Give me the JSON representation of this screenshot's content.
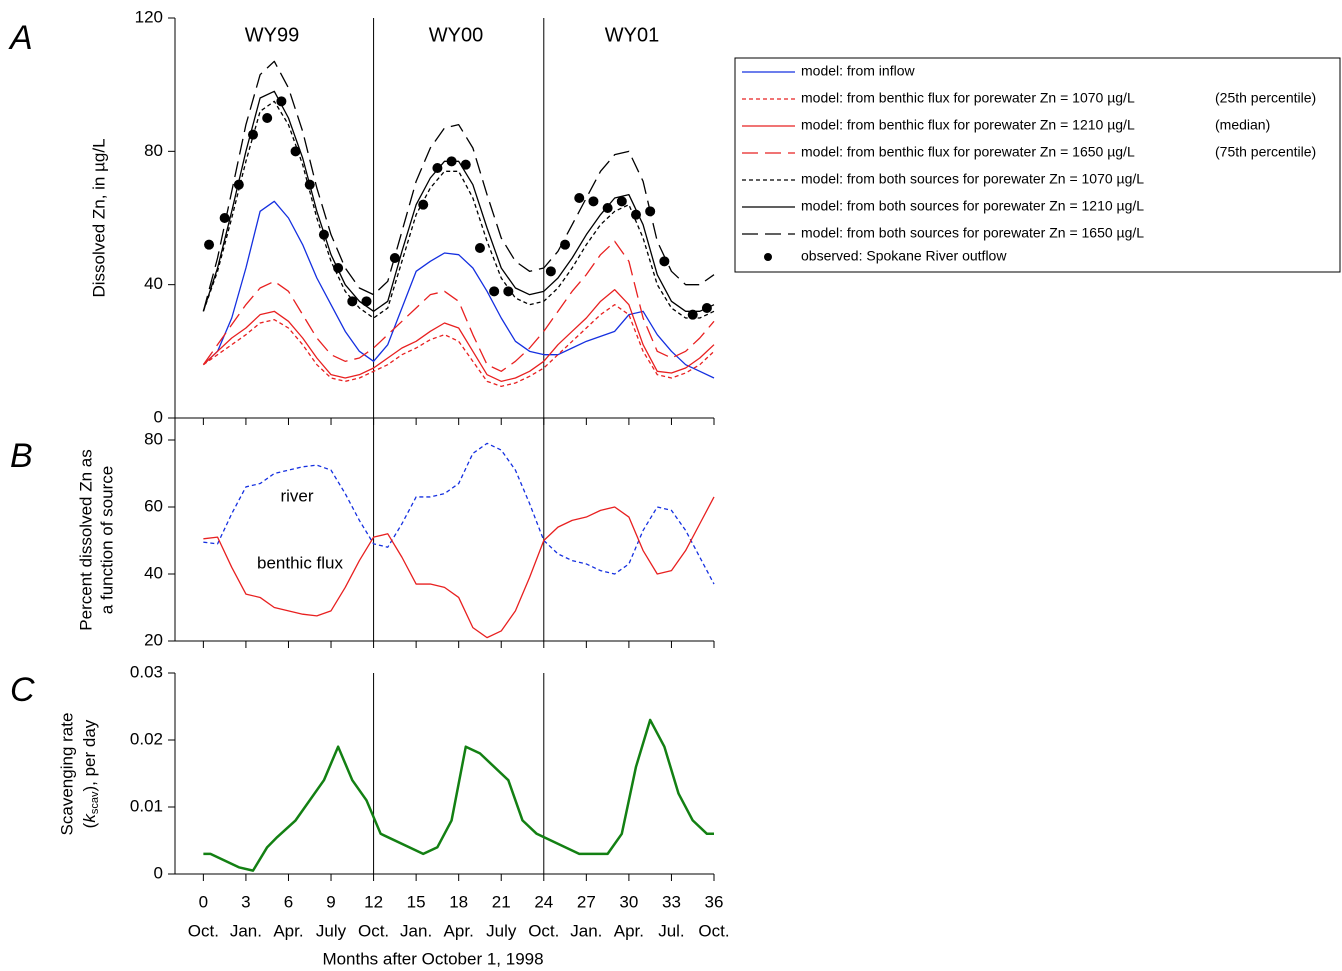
{
  "chart_data": [
    {
      "type": "line",
      "panel_label": "A",
      "ylabel": [
        "Dissolved Zn, in µg/L"
      ],
      "xlim": [
        -2,
        36
      ],
      "ylim": [
        0,
        120
      ],
      "yticks": [
        0,
        40,
        80,
        120
      ],
      "year_lines": [
        12,
        24
      ],
      "year_labels": [
        "WY99",
        "WY00",
        "WY01"
      ],
      "x": [
        0,
        1,
        2,
        3,
        4,
        5,
        6,
        7,
        8,
        9,
        10,
        11,
        12,
        13,
        14,
        15,
        16,
        17,
        18,
        19,
        20,
        21,
        22,
        23,
        24,
        25,
        26,
        27,
        28,
        29,
        30,
        31,
        32,
        33,
        34,
        35,
        36
      ],
      "series": [
        {
          "name": "model: from inflow",
          "color": "#1530e0",
          "line_style": "solid",
          "values": [
            16,
            20,
            30,
            45,
            62,
            65,
            60,
            52,
            42,
            34,
            26,
            20,
            17,
            22,
            33,
            44,
            47,
            49.5,
            49,
            45,
            38,
            30,
            23,
            20,
            19,
            19,
            21,
            23,
            24.5,
            26,
            31,
            32,
            25,
            20,
            16,
            14,
            12
          ]
        },
        {
          "name": "model: from benthic flux for porewater Zn = 1070 µg/L",
          "legend_note": "(25th percentile)",
          "color": "#e82020",
          "line_style": "short",
          "values": [
            16,
            19,
            22,
            25,
            28.5,
            29.5,
            27,
            22,
            16,
            12,
            11,
            12,
            14,
            16,
            19,
            21,
            23.5,
            25,
            23,
            17,
            11,
            9.5,
            10.5,
            12.5,
            15,
            19,
            23,
            27,
            31,
            34,
            31,
            20,
            13,
            12,
            13.5,
            16,
            20
          ]
        },
        {
          "name": "model: from benthic flux for porewater Zn = 1210 µg/L",
          "legend_note": "(median)",
          "color": "#e82020",
          "line_style": "solid",
          "values": [
            16,
            20,
            24,
            27,
            31,
            32,
            29,
            24,
            18,
            13,
            12,
            13,
            15,
            18,
            21,
            23,
            26,
            28.5,
            27,
            20,
            13,
            11,
            12,
            14,
            17,
            22,
            26,
            30,
            35,
            38.5,
            34,
            22,
            14,
            13.5,
            15,
            18,
            22
          ]
        },
        {
          "name": "model: from benthic flux for porewater Zn = 1650 µg/L",
          "legend_note": "(75th percentile)",
          "color": "#e82020",
          "line_style": "long",
          "values": [
            16,
            22,
            28,
            34,
            39,
            41,
            38,
            31,
            24,
            19,
            17,
            18,
            21,
            25,
            29,
            33,
            37,
            38,
            35,
            25,
            16,
            14,
            17,
            21,
            26,
            32,
            38,
            43,
            49,
            53,
            47,
            30,
            20,
            18,
            20,
            24,
            29
          ]
        },
        {
          "name": "model: from both sources for porewater Zn = 1070 µg/L",
          "color": "#000000",
          "line_style": "short",
          "values": [
            32,
            44,
            60,
            77,
            92,
            95,
            88,
            76,
            60,
            47,
            38,
            33,
            30,
            33,
            47,
            61,
            69,
            74,
            74,
            66,
            53,
            42,
            36,
            34,
            35,
            39,
            45,
            52,
            58,
            62,
            64,
            54,
            40,
            33,
            30,
            30,
            32
          ]
        },
        {
          "name": "model: from both sources for porewater Zn = 1210 µg/L",
          "color": "#000000",
          "line_style": "solid",
          "values": [
            32,
            45,
            62,
            80,
            96,
            98,
            90,
            78,
            62,
            49,
            40,
            35,
            32,
            35,
            50,
            64,
            72,
            77,
            77,
            70,
            57,
            45,
            39,
            37,
            38,
            42,
            48,
            55,
            61,
            66,
            67,
            58,
            43,
            35,
            32,
            32,
            34
          ]
        },
        {
          "name": "model: from both sources for porewater Zn = 1650 µg/L",
          "color": "#000000",
          "line_style": "long",
          "values": [
            32,
            48,
            68,
            88,
            103,
            107,
            99,
            86,
            69,
            55,
            45,
            39,
            37,
            41,
            56,
            71,
            81,
            87,
            88,
            81,
            67,
            54,
            47,
            44,
            45,
            50,
            58,
            66,
            74,
            79,
            80,
            71,
            53,
            44,
            40,
            40,
            43
          ]
        },
        {
          "name": "observed: Spokane River outflow",
          "color": "#000000",
          "line_style": "points",
          "x": [
            0.4,
            1.5,
            2.5,
            3.5,
            4.5,
            5.5,
            6.5,
            7.5,
            8.5,
            9.5,
            10.5,
            11.5,
            13.5,
            15.5,
            16.5,
            17.5,
            18.5,
            19.5,
            20.5,
            21.5,
            24.5,
            25.5,
            26.5,
            27.5,
            28.5,
            29.5,
            30.5,
            31.5,
            32.5,
            34.5,
            35.5
          ],
          "values": [
            52,
            60,
            70,
            85,
            90,
            95,
            80,
            70,
            55,
            45,
            35,
            35,
            48,
            64,
            75,
            77,
            76,
            51,
            38,
            38,
            44,
            52,
            66,
            65,
            63,
            65,
            61,
            62,
            47,
            31,
            33
          ]
        }
      ]
    },
    {
      "type": "line",
      "panel_label": "B",
      "ylabel": [
        "Percent dissolved Zn as",
        "a function of source"
      ],
      "xlim": [
        -2,
        36
      ],
      "ylim": [
        20,
        80
      ],
      "yticks": [
        20,
        40,
        60,
        80
      ],
      "year_lines": [
        12,
        24
      ],
      "annotations": [
        "river",
        "benthic flux"
      ],
      "x": [
        0,
        1,
        2,
        3,
        4,
        5,
        6,
        7,
        8,
        9,
        10,
        11,
        12,
        13,
        14,
        15,
        16,
        17,
        18,
        19,
        20,
        21,
        22,
        23,
        24,
        25,
        26,
        27,
        28,
        29,
        30,
        31,
        32,
        33,
        34,
        35,
        36
      ],
      "series": [
        {
          "color": "#1530e0",
          "line_style": "short",
          "values": [
            49.5,
            49,
            58,
            66,
            67,
            70,
            71,
            72,
            72.5,
            71,
            64,
            56,
            49,
            48,
            55,
            63,
            63,
            64,
            67,
            76,
            79,
            77,
            71,
            61,
            50,
            46,
            44,
            43,
            41,
            40,
            43,
            53,
            60,
            59,
            53,
            45,
            37
          ]
        },
        {
          "color": "#e82020",
          "line_style": "solid",
          "values": [
            50.5,
            51,
            42,
            34,
            33,
            30,
            29,
            28,
            27.5,
            29,
            36,
            44,
            51,
            52,
            45,
            37,
            37,
            36,
            33,
            24,
            21,
            23,
            29,
            39,
            50,
            54,
            56,
            57,
            59,
            60,
            57,
            47,
            40,
            41,
            47,
            55,
            63
          ]
        }
      ]
    },
    {
      "type": "line",
      "panel_label": "C",
      "ylabel": [
        "Scavenging rate"
      ],
      "ylabel_parts": [
        "(",
        "k",
        "scav",
        "), per day"
      ],
      "xlim": [
        -2,
        36
      ],
      "ylim": [
        0,
        0.03
      ],
      "yticks": [
        0,
        0.01,
        0.02,
        0.03
      ],
      "year_lines": [
        12,
        24
      ],
      "xlabel": "Months after October 1, 1998",
      "xticks": [
        0,
        3,
        6,
        9,
        12,
        15,
        18,
        21,
        24,
        27,
        30,
        33,
        36
      ],
      "xtick_months": [
        "Oct.",
        "Jan.",
        "Apr.",
        "July",
        "Oct.",
        "Jan.",
        "Apr.",
        "July",
        "Oct.",
        "Jan.",
        "Apr.",
        "Jul.",
        "Oct."
      ],
      "x": [
        0,
        0.5,
        2.5,
        3.5,
        4.5,
        5.2,
        6.5,
        8.5,
        9.5,
        10.5,
        11.5,
        12.5,
        15.5,
        16.5,
        17.5,
        18.5,
        19.5,
        21.5,
        22.5,
        23.5,
        26.5,
        28.5,
        29.5,
        30.5,
        31.5,
        32.5,
        33.5,
        34.5,
        35.5,
        36
      ],
      "series": [
        {
          "color": "#138013",
          "line_style": "solid",
          "width": 2.5,
          "values": [
            0.003,
            0.003,
            0.001,
            0.0005,
            0.004,
            0.0055,
            0.008,
            0.014,
            0.019,
            0.014,
            0.011,
            0.006,
            0.003,
            0.004,
            0.008,
            0.019,
            0.018,
            0.014,
            0.008,
            0.006,
            0.003,
            0.003,
            0.006,
            0.016,
            0.023,
            0.019,
            0.012,
            0.008,
            0.006,
            0.006
          ]
        }
      ]
    }
  ]
}
